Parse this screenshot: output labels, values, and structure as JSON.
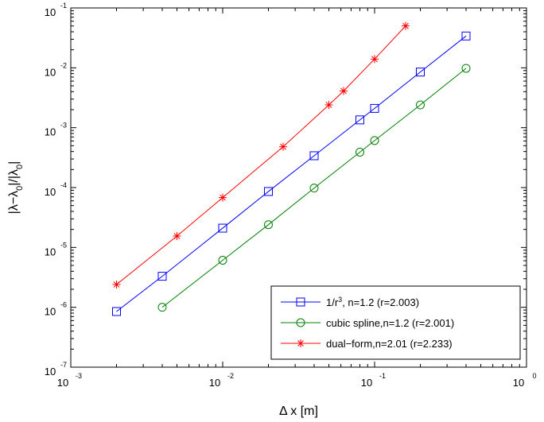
{
  "chart_data": {
    "type": "line",
    "xscale": "log",
    "yscale": "log",
    "xlim": [
      0.001,
      1
    ],
    "ylim": [
      1e-07,
      0.1
    ],
    "xlabel": "Δ x [m]",
    "ylabel": "|λ−λ0|/|λ0|",
    "x_ticks": [
      "10^-3",
      "10^-2",
      "10^-1",
      "10^0"
    ],
    "y_ticks": [
      "10^-7",
      "10^-6",
      "10^-5",
      "10^-4",
      "10^-3",
      "10^-2",
      "10^-1"
    ],
    "legend_position": "bottom-right",
    "grid": false,
    "series": [
      {
        "name": "1/r3, n=1.2 (r=2.003)",
        "legend_main": "1/r",
        "legend_sup": "3",
        "legend_rest": ", n=1.2 (r=2.003)",
        "color": "#0000ff",
        "marker": "square",
        "x": [
          0.002,
          0.004,
          0.01,
          0.02,
          0.04,
          0.08,
          0.1,
          0.2,
          0.4
        ],
        "y": [
          8.5e-07,
          3.3e-06,
          2.1e-05,
          8.6e-05,
          0.00034,
          0.00135,
          0.0021,
          0.0085,
          0.034
        ]
      },
      {
        "name": "cubic spline,n=1.2 (r=2.001)",
        "legend_main": "cubic spline,n=1.2 (r=2.001)",
        "legend_sup": "",
        "legend_rest": "",
        "color": "#008000",
        "marker": "circle",
        "x": [
          0.004,
          0.01,
          0.02,
          0.04,
          0.08,
          0.1,
          0.2,
          0.4
        ],
        "y": [
          1e-06,
          6.1e-06,
          2.4e-05,
          9.8e-05,
          0.00039,
          0.00061,
          0.0024,
          0.0098
        ]
      },
      {
        "name": "dual−form,n=2.01 (r=2.233)",
        "legend_main": "dual−form,n=2.01 (r=2.233)",
        "legend_sup": "",
        "legend_rest": "",
        "color": "#ff0000",
        "marker": "star",
        "x": [
          0.002,
          0.005,
          0.01,
          0.025,
          0.05,
          0.0625,
          0.1,
          0.16
        ],
        "y": [
          2.4e-06,
          1.55e-05,
          6.8e-05,
          0.00048,
          0.0024,
          0.0041,
          0.014,
          0.05
        ]
      }
    ]
  }
}
